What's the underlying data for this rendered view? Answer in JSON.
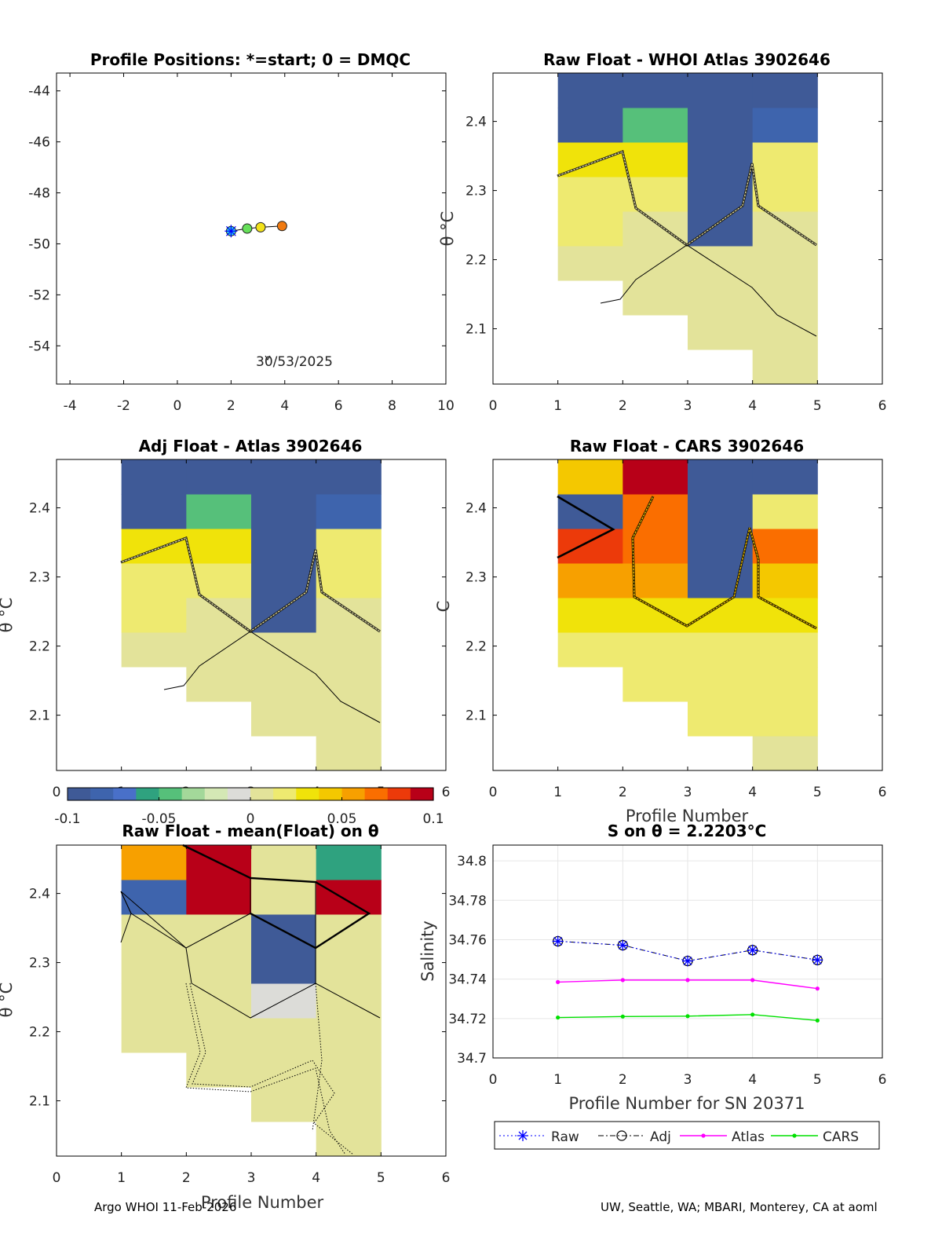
{
  "panels": {
    "positions": {
      "title": "Profile Positions: *=start; 0 = DMQC",
      "date_label": "30/53/2025",
      "x_ticks": [
        "-4",
        "-2",
        "0",
        "2",
        "4",
        "6",
        "8",
        "10"
      ],
      "y_ticks": [
        "-44",
        "-46",
        "-48",
        "-50",
        "-52",
        "-54"
      ],
      "xlim": [
        -4.5,
        10
      ],
      "ylim": [
        -55.5,
        -43.3
      ]
    },
    "raw_atlas": {
      "title": "Raw Float - WHOI Atlas  3902646",
      "ylabel": "θ °C"
    },
    "adj_atlas": {
      "title": "Adj Float - Atlas  3902646",
      "ylabel": "θ °C"
    },
    "raw_cars": {
      "title": "Raw Float - CARS  3902646",
      "xlabel": "Profile Number"
    },
    "raw_mean": {
      "title": "Raw Float - mean(Float) on θ",
      "ylabel": "θ °C",
      "xlabel": "Profile Number"
    },
    "salinity": {
      "title": "S on θ = 2.2203°C",
      "ylabel": "Salinity",
      "xlabel": "Profile Number for SN 20371"
    }
  },
  "heat_axes": {
    "x_ticks": [
      "0",
      "1",
      "2",
      "3",
      "4",
      "5",
      "6"
    ],
    "y_ticks": [
      "2.1",
      "2.2",
      "2.3",
      "2.4"
    ],
    "xlim": [
      0,
      6
    ],
    "ylim": [
      2.02,
      2.47
    ]
  },
  "colorbar": {
    "min": -0.1,
    "max": 0.1,
    "tick_labels": [
      "-0.1",
      "-0.05",
      "0",
      "0.05",
      "0.1"
    ],
    "colors": [
      "#3f5a97",
      "#3e64ad",
      "#4970c9",
      "#2fa27f",
      "#56c07a",
      "#a3d89a",
      "#d4e8b5",
      "#dcdcd8",
      "#e3e39a",
      "#eeea70",
      "#f0e30a",
      "#f4c800",
      "#f7a000",
      "#fa6e00",
      "#ec3a0a",
      "#b80018"
    ]
  },
  "chart_data": [
    {
      "type": "scatter",
      "title": "Profile Positions: *=start; 0 = DMQC",
      "x": [
        2.0,
        2.6,
        3.1,
        3.9
      ],
      "y": [
        -49.5,
        -49.4,
        -49.35,
        -49.3
      ],
      "point_colors": [
        "#29c9f0",
        "#67e05a",
        "#f2e21a",
        "#f07a10"
      ],
      "annotation": "30/53/2025"
    },
    {
      "type": "heatmap",
      "title": "Raw Float - WHOI Atlas  3902646",
      "ylabel": "θ °C",
      "theta_bins": [
        2.02,
        2.07,
        2.12,
        2.17,
        2.22,
        2.27,
        2.32,
        2.37,
        2.42,
        2.47
      ],
      "profiles": [
        1,
        2,
        3,
        4,
        5
      ],
      "cells": [
        [
          null,
          null,
          null,
          0.0,
          null
        ],
        [
          null,
          null,
          0.004,
          0.002,
          null
        ],
        [
          null,
          0.004,
          0.003,
          0.004,
          null
        ],
        [
          0.002,
          0.003,
          0.0,
          0.002,
          null
        ],
        [
          0.015,
          0.012,
          -0.1,
          0.01,
          null
        ],
        [
          0.018,
          0.02,
          -0.1,
          0.018,
          null
        ],
        [
          0.03,
          0.026,
          -0.1,
          0.02,
          null
        ],
        [
          -0.1,
          -0.04,
          -0.1,
          -0.08,
          null
        ],
        [
          -0.1,
          -0.1,
          -0.1,
          -0.1,
          null
        ]
      ]
    },
    {
      "type": "heatmap",
      "title": "Adj Float - Atlas  3902646",
      "ylabel": "θ °C",
      "theta_bins": [
        2.02,
        2.07,
        2.12,
        2.17,
        2.22,
        2.27,
        2.32,
        2.37,
        2.42,
        2.47
      ],
      "profiles": [
        1,
        2,
        3,
        4,
        5
      ],
      "cells": [
        [
          null,
          null,
          null,
          0.0,
          null
        ],
        [
          null,
          null,
          0.004,
          0.002,
          null
        ],
        [
          null,
          0.004,
          0.003,
          0.004,
          null
        ],
        [
          0.002,
          0.003,
          0.0,
          0.002,
          null
        ],
        [
          0.015,
          0.012,
          -0.1,
          0.01,
          null
        ],
        [
          0.018,
          0.02,
          -0.1,
          0.018,
          null
        ],
        [
          0.03,
          0.026,
          -0.1,
          0.02,
          null
        ],
        [
          -0.1,
          -0.04,
          -0.1,
          -0.08,
          null
        ],
        [
          -0.1,
          -0.1,
          -0.1,
          -0.1,
          null
        ]
      ]
    },
    {
      "type": "heatmap",
      "title": "Raw Float - CARS  3902646",
      "xlabel": "Profile Number",
      "theta_bins": [
        2.02,
        2.07,
        2.12,
        2.17,
        2.22,
        2.27,
        2.32,
        2.37,
        2.42,
        2.47
      ],
      "profiles": [
        1,
        2,
        3,
        4,
        5
      ],
      "cells": [
        [
          null,
          null,
          null,
          0.012,
          null
        ],
        [
          null,
          null,
          0.016,
          0.016,
          null
        ],
        [
          null,
          0.016,
          0.016,
          0.016,
          null
        ],
        [
          0.02,
          0.022,
          0.016,
          0.016,
          null
        ],
        [
          0.035,
          0.035,
          0.03,
          0.035,
          null
        ],
        [
          0.055,
          0.055,
          -0.1,
          0.04,
          null
        ],
        [
          0.08,
          0.075,
          -0.1,
          0.07,
          null
        ],
        [
          -0.1,
          0.07,
          -0.1,
          0.018,
          null
        ],
        [
          0.04,
          0.1,
          -0.1,
          -0.1,
          null
        ]
      ]
    },
    {
      "type": "heatmap",
      "title": "Raw Float - mean(Float) on θ",
      "ylabel": "θ °C",
      "xlabel": "Profile Number",
      "theta_bins": [
        2.02,
        2.07,
        2.12,
        2.17,
        2.22,
        2.27,
        2.32,
        2.37,
        2.42,
        2.47
      ],
      "profiles": [
        1,
        2,
        3,
        4,
        5
      ],
      "cells": [
        [
          null,
          null,
          null,
          0.0,
          null
        ],
        [
          null,
          null,
          0.0,
          0.0,
          null
        ],
        [
          null,
          0.0,
          0.0,
          0.0,
          null
        ],
        [
          0.0,
          0.0,
          0.0,
          0.0,
          null
        ],
        [
          0.0,
          0.0,
          -0.003,
          0.0,
          null
        ],
        [
          0.0,
          0.0,
          -0.1,
          0.0,
          null
        ],
        [
          0.0,
          0.0,
          -0.1,
          0.0,
          null
        ],
        [
          -0.085,
          0.1,
          0.0,
          0.1,
          null
        ],
        [
          0.055,
          0.1,
          0.0,
          -0.06,
          null
        ]
      ]
    },
    {
      "type": "line",
      "title": "S on θ = 2.2203°C",
      "xlabel": "Profile Number for SN 20371",
      "ylabel": "Salinity",
      "x_ticks": [
        "0",
        "1",
        "2",
        "3",
        "4",
        "5",
        "6"
      ],
      "y_ticks": [
        "34.7",
        "34.72",
        "34.74",
        "34.76",
        "34.78",
        "34.8"
      ],
      "xlim": [
        0,
        6
      ],
      "ylim": [
        34.7,
        34.808
      ],
      "x": [
        1,
        2,
        3,
        4,
        5
      ],
      "series": [
        {
          "name": "Raw",
          "values": [
            34.7592,
            34.7572,
            34.7492,
            34.7547,
            34.7497
          ],
          "color": "#0000ff"
        },
        {
          "name": "Adj",
          "values": [
            34.7592,
            34.7572,
            34.7492,
            34.7547,
            34.7497
          ],
          "color": "#000000"
        },
        {
          "name": "Atlas",
          "values": [
            34.7385,
            34.7395,
            34.7395,
            34.7395,
            34.7352
          ],
          "color": "#ff00ff"
        },
        {
          "name": "CARS",
          "values": [
            34.7205,
            34.721,
            34.7212,
            34.722,
            34.719
          ],
          "color": "#00e000"
        }
      ]
    }
  ],
  "footer": {
    "left": "Argo WHOI 11-Feb-2026",
    "right": "UW, Seattle, WA; MBARI, Monterey, CA at aoml"
  }
}
